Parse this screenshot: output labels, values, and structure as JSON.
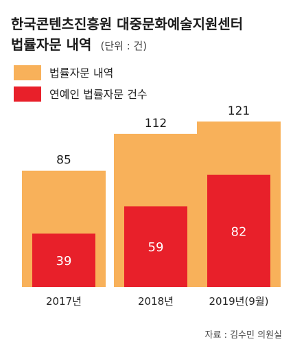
{
  "title_line1": "한국콘텐츠진흥원 대중문화예술지원센터",
  "title_line2": "법률자문 내역",
  "unit": "(단위 : 건)",
  "source": "자료 : 김수민 의원실",
  "colors": {
    "total": "#f8b15a",
    "entertainer": "#e8202a"
  },
  "chart_data": {
    "type": "bar",
    "categories": [
      "2017년",
      "2018년",
      "2019년(9월)"
    ],
    "series": [
      {
        "name": "법률자문 내역",
        "values": [
          85,
          112,
          121
        ]
      },
      {
        "name": "연예인 법률자문 건수",
        "values": [
          39,
          59,
          82
        ]
      }
    ],
    "ylim": [
      0,
      125
    ],
    "legend": "top-left",
    "grid": false
  }
}
